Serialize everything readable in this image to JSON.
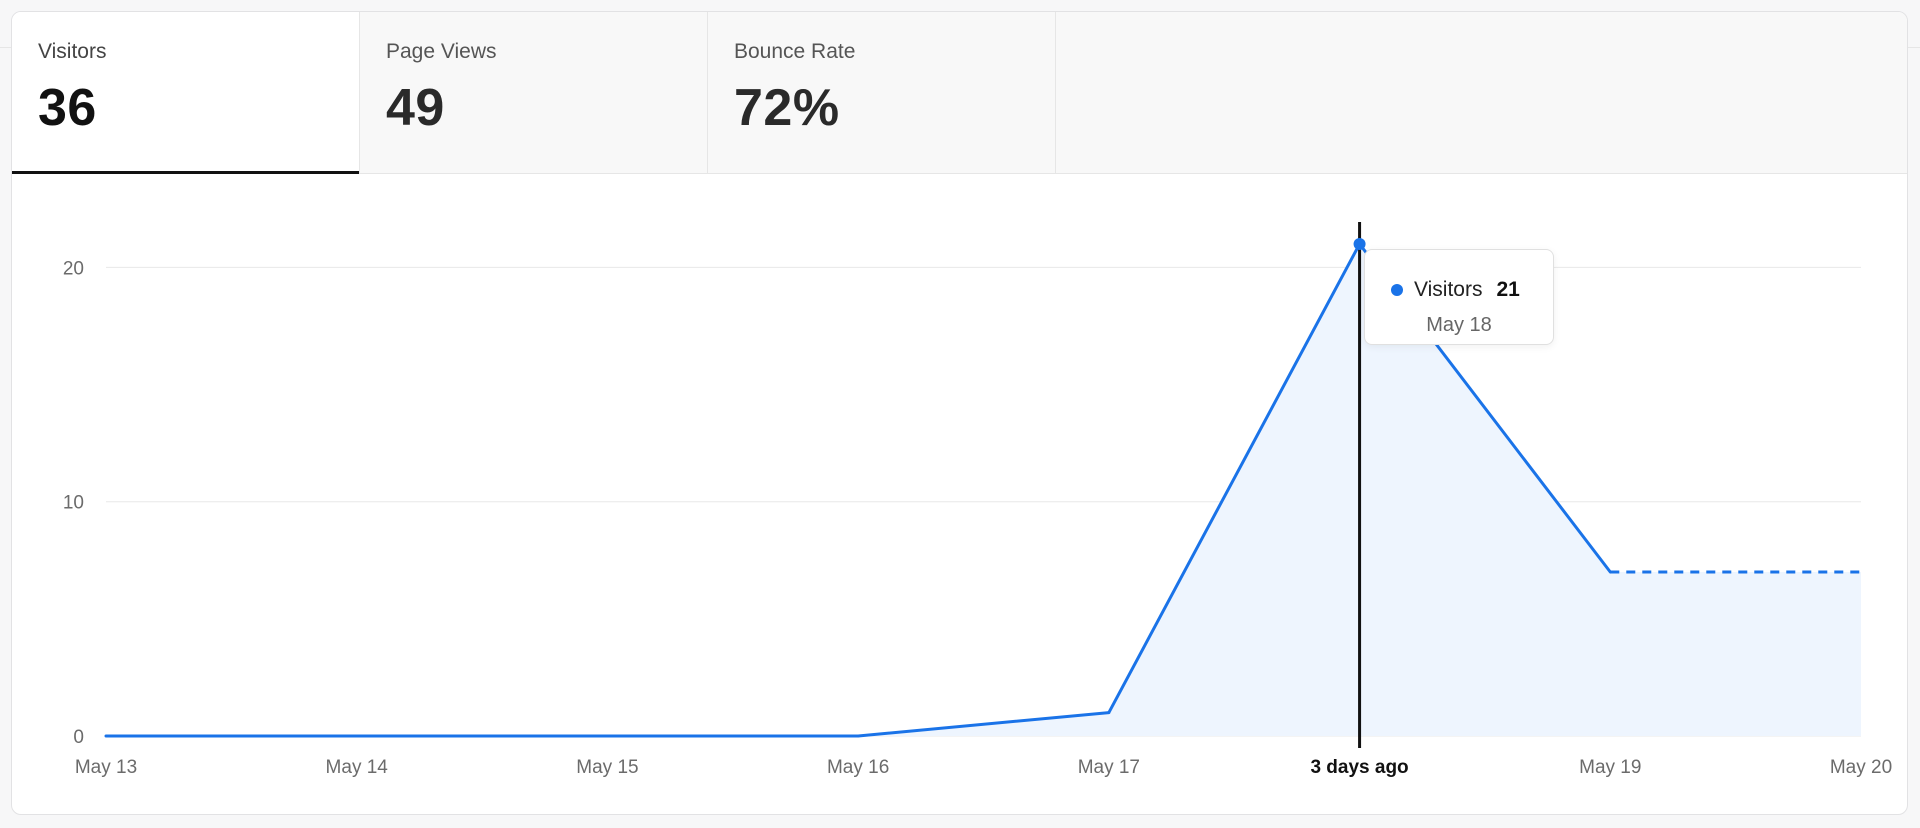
{
  "tabs": [
    {
      "label": "Visitors",
      "value": "36"
    },
    {
      "label": "Page Views",
      "value": "49"
    },
    {
      "label": "Bounce Rate",
      "value": "72%"
    }
  ],
  "colors": {
    "line": "#1a73e8",
    "area": "#eef5fe",
    "grid": "#e8e8e8",
    "tick_text": "#6b6b6b",
    "cursor": "#111111"
  },
  "tooltip": {
    "series": "Visitors",
    "value": "21",
    "date": "May 18"
  },
  "chart_data": {
    "type": "area",
    "x": [
      "May 13",
      "May 14",
      "May 15",
      "May 16",
      "May 17",
      "May 18",
      "May 19",
      "May 20"
    ],
    "x_tick_labels": [
      "May 13",
      "May 14",
      "May 15",
      "May 16",
      "May 17",
      "3 days ago",
      "May 19",
      "May 20"
    ],
    "series": [
      {
        "name": "Visitors",
        "values": [
          0,
          0,
          0,
          0,
          1,
          21,
          7,
          7
        ],
        "dashed_from_index": 6
      }
    ],
    "y_ticks": [
      0,
      10,
      20
    ],
    "ylim": [
      0,
      21
    ],
    "grid": true,
    "highlighted_x": "May 18"
  }
}
